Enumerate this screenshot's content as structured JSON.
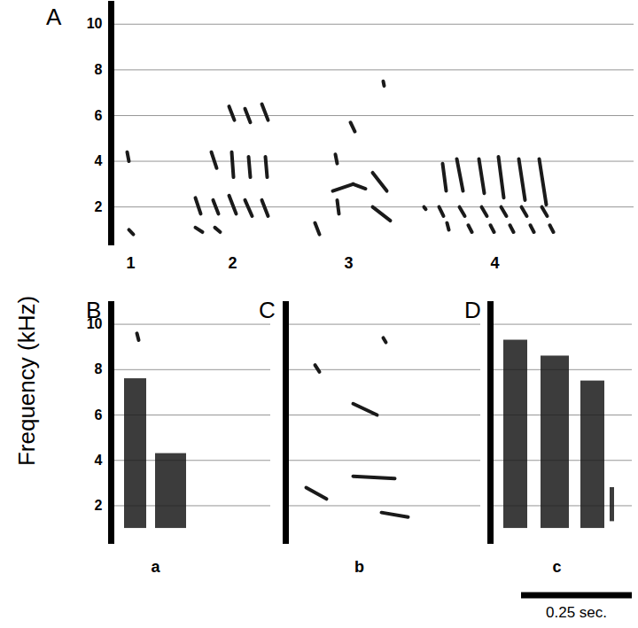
{
  "chart_data": [
    {
      "type": "spectrogram",
      "panel": "A",
      "ylabel": "Frequency (kHz)",
      "xlim": [
        0,
        1.18
      ],
      "ylim": [
        0.3,
        11
      ],
      "yticks": [
        2,
        4,
        6,
        8,
        10
      ],
      "grid": true,
      "tick_labels": "y",
      "color": "#1a1a1a",
      "syllables": [
        {
          "label": "1",
          "t": 0.044
        },
        {
          "label": "2",
          "t": 0.274
        },
        {
          "label": "3",
          "t": 0.536
        },
        {
          "label": "4",
          "t": 0.866
        }
      ],
      "notes": [
        [
          0.036,
          0.04,
          4.4,
          4.0
        ],
        [
          0.04,
          0.05,
          1.0,
          0.8
        ],
        [
          0.19,
          0.202,
          2.4,
          1.7
        ],
        [
          0.19,
          0.206,
          1.1,
          0.9
        ],
        [
          0.226,
          0.238,
          4.4,
          3.7
        ],
        [
          0.23,
          0.242,
          2.3,
          1.7
        ],
        [
          0.234,
          0.246,
          1.1,
          0.9
        ],
        [
          0.266,
          0.278,
          6.4,
          5.8
        ],
        [
          0.266,
          0.282,
          2.5,
          1.7
        ],
        [
          0.272,
          0.276,
          4.4,
          3.3
        ],
        [
          0.302,
          0.314,
          6.3,
          5.7
        ],
        [
          0.302,
          0.318,
          2.3,
          1.6
        ],
        [
          0.31,
          0.314,
          4.2,
          3.3
        ],
        [
          0.34,
          0.354,
          6.5,
          5.8
        ],
        [
          0.34,
          0.354,
          2.3,
          1.6
        ],
        [
          0.348,
          0.352,
          4.2,
          3.3
        ],
        [
          0.46,
          0.47,
          1.3,
          0.8
        ],
        [
          0.506,
          0.51,
          4.3,
          3.9
        ],
        [
          0.5,
          0.546,
          2.7,
          3.0
        ],
        [
          0.51,
          0.514,
          2.3,
          1.7
        ],
        [
          0.546,
          0.574,
          3.0,
          2.8
        ],
        [
          0.54,
          0.55,
          5.7,
          5.3
        ],
        [
          0.59,
          0.622,
          3.5,
          2.7
        ],
        [
          0.59,
          0.63,
          2.0,
          1.4
        ],
        [
          0.614,
          0.616,
          7.5,
          7.3
        ],
        [
          0.706,
          0.71,
          2.0,
          1.9
        ],
        [
          0.74,
          0.75,
          2.0,
          1.6
        ],
        [
          0.758,
          0.762,
          1.3,
          1.0
        ],
        [
          0.748,
          0.756,
          3.9,
          2.7
        ],
        [
          0.78,
          0.794,
          4.1,
          2.7
        ],
        [
          0.83,
          0.842,
          4.1,
          2.6
        ],
        [
          0.874,
          0.886,
          4.2,
          2.4
        ],
        [
          0.92,
          0.934,
          4.1,
          2.3
        ],
        [
          0.966,
          0.982,
          4.1,
          2.1
        ],
        [
          0.786,
          0.798,
          2.0,
          1.6
        ],
        [
          0.806,
          0.814,
          1.2,
          0.9
        ],
        [
          0.836,
          0.848,
          2.0,
          1.6
        ],
        [
          0.856,
          0.864,
          1.2,
          0.9
        ],
        [
          0.88,
          0.892,
          2.0,
          1.6
        ],
        [
          0.9,
          0.908,
          1.2,
          0.9
        ],
        [
          0.926,
          0.938,
          2.0,
          1.6
        ],
        [
          0.946,
          0.954,
          1.2,
          0.9
        ],
        [
          0.972,
          0.984,
          2.0,
          1.6
        ],
        [
          0.99,
          0.998,
          1.2,
          0.9
        ]
      ]
    },
    {
      "type": "spectrogram",
      "panel": "B",
      "xlim": [
        0,
        0.36
      ],
      "ylim": [
        0.3,
        11
      ],
      "yticks": [
        2,
        4,
        6,
        8,
        10
      ],
      "grid": true,
      "tick_labels": "y",
      "color": "#1a1a1a",
      "syllables": [
        {
          "label": "a",
          "t": 0.1
        }
      ],
      "notes": [
        [
          0.058,
          0.062,
          9.6,
          9.3
        ]
      ],
      "bursts": [
        [
          0.03,
          0.08,
          1.0,
          7.6
        ],
        [
          0.1,
          0.17,
          1.0,
          4.3
        ]
      ]
    },
    {
      "type": "spectrogram",
      "panel": "C",
      "xlim": [
        0,
        0.44
      ],
      "ylim": [
        0.3,
        11
      ],
      "yticks": [
        2,
        4,
        6,
        8,
        10
      ],
      "grid": true,
      "tick_labels": false,
      "color": "#1a1a1a",
      "syllables": [
        {
          "label": "b",
          "t": 0.166
        }
      ],
      "notes": [
        [
          0.046,
          0.092,
          2.8,
          2.3
        ],
        [
          0.066,
          0.076,
          8.2,
          7.9
        ],
        [
          0.152,
          0.206,
          6.5,
          6.0
        ],
        [
          0.152,
          0.246,
          3.3,
          3.2
        ],
        [
          0.216,
          0.276,
          1.7,
          1.5
        ],
        [
          0.22,
          0.226,
          9.4,
          9.2
        ]
      ]
    },
    {
      "type": "spectrogram",
      "panel": "D",
      "xlim": [
        0,
        0.32
      ],
      "ylim": [
        0.3,
        11
      ],
      "yticks": [
        2,
        4,
        6,
        8,
        10
      ],
      "grid": true,
      "tick_labels": false,
      "color": "#1a1a1a",
      "syllables": [
        {
          "label": "c",
          "t": 0.15
        }
      ],
      "bursts": [
        [
          0.03,
          0.084,
          1.0,
          9.3
        ],
        [
          0.114,
          0.178,
          1.0,
          8.6
        ],
        [
          0.204,
          0.258,
          1.0,
          7.5
        ],
        [
          0.27,
          0.28,
          1.3,
          2.8
        ]
      ],
      "scale_bar": {
        "length": 0.25,
        "label": "0.25 sec."
      }
    }
  ]
}
